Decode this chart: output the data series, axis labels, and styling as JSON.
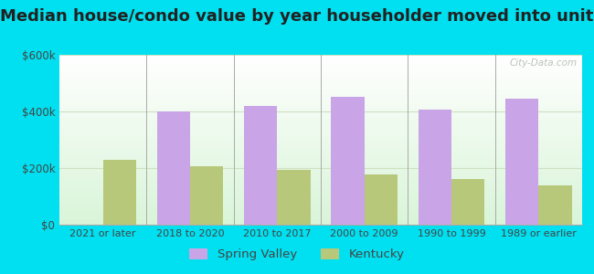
{
  "title": "Median house/condo value by year householder moved into unit",
  "categories": [
    "2021 or later",
    "2018 to 2020",
    "2010 to 2017",
    "2000 to 2009",
    "1990 to 1999",
    "1989 or earlier"
  ],
  "spring_valley": [
    0,
    400000,
    420000,
    452000,
    408000,
    445000
  ],
  "kentucky": [
    228000,
    208000,
    193000,
    178000,
    160000,
    140000
  ],
  "spring_valley_color": "#c9a5e8",
  "kentucky_color": "#b8c87a",
  "ylim": [
    0,
    600000
  ],
  "ytick_vals": [
    0,
    200000,
    400000,
    600000
  ],
  "ytick_labels": [
    "$0",
    "$200k",
    "$400k",
    "$600k"
  ],
  "bg_outer": "#00e0f0",
  "bg_chart": "#f0faf0",
  "grid_color": "#d0e0c0",
  "bar_width": 0.38,
  "legend_spring_valley": "Spring Valley",
  "legend_kentucky": "Kentucky",
  "watermark": "City-Data.com",
  "title_fontsize": 13,
  "tick_fontsize": 8,
  "ytick_fontsize": 8.5
}
